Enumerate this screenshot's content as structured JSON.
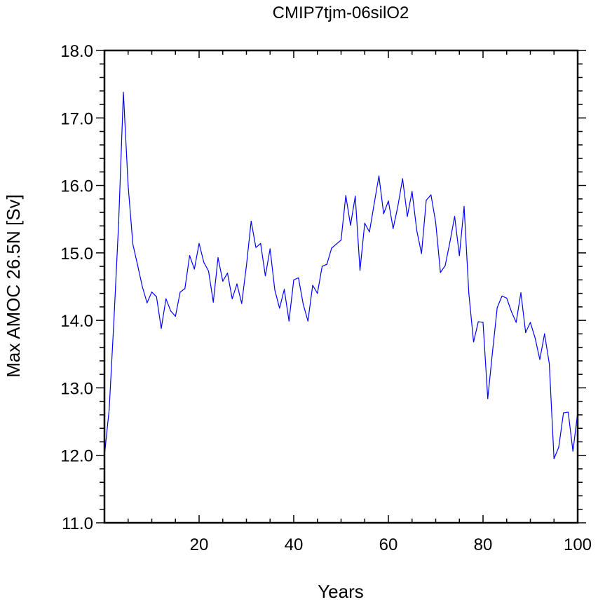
{
  "chart_data": {
    "type": "line",
    "title": "CMIP7tjm-06silO2",
    "xlabel": "Years",
    "ylabel": "Max AMOC 26.5N [Sv]",
    "xlim": [
      0,
      100
    ],
    "ylim": [
      11.0,
      18.0
    ],
    "xticks": [
      20,
      40,
      60,
      80,
      100
    ],
    "xtick_labels": [
      "20",
      "40",
      "60",
      "80",
      "100"
    ],
    "yticks": [
      11.0,
      12.0,
      13.0,
      14.0,
      15.0,
      16.0,
      17.0,
      18.0
    ],
    "ytick_labels": [
      "11.0",
      "12.0",
      "13.0",
      "14.0",
      "15.0",
      "16.0",
      "17.0",
      "18.0"
    ],
    "grid": false,
    "line_color": "#0000ff",
    "series": [
      {
        "x": [
          0,
          1,
          2,
          3,
          4,
          5,
          6,
          7,
          8,
          9,
          10,
          11,
          12,
          13,
          14,
          15,
          16,
          17,
          18,
          19,
          20,
          21,
          22,
          23,
          24,
          25,
          26,
          27,
          28,
          29,
          30,
          31,
          32,
          33,
          34,
          35,
          36,
          37,
          38,
          39,
          40,
          41,
          42,
          43,
          44,
          45,
          46,
          47,
          48,
          49,
          50,
          51,
          52,
          53,
          54,
          55,
          56,
          57,
          58,
          59,
          60,
          61,
          62,
          63,
          64,
          65,
          66,
          67,
          68,
          69,
          70,
          71,
          72,
          73,
          74,
          75,
          76,
          77,
          78,
          79,
          80,
          81,
          82,
          83,
          84,
          85,
          86,
          87,
          88,
          89,
          90,
          91,
          92,
          93,
          94,
          95,
          96,
          97,
          98,
          99,
          100
        ],
        "values": [
          12.0,
          12.68,
          14.0,
          15.45,
          17.38,
          16.0,
          15.13,
          14.82,
          14.5,
          14.26,
          14.42,
          14.35,
          13.88,
          14.32,
          14.14,
          14.06,
          14.42,
          14.47,
          14.96,
          14.76,
          15.14,
          14.86,
          14.73,
          14.27,
          14.93,
          14.58,
          14.7,
          14.32,
          14.54,
          14.25,
          14.81,
          15.47,
          15.08,
          15.14,
          14.66,
          15.06,
          14.45,
          14.18,
          14.46,
          13.99,
          14.6,
          14.63,
          14.24,
          13.99,
          14.52,
          14.4,
          14.8,
          14.83,
          15.07,
          15.13,
          15.19,
          15.85,
          15.41,
          15.84,
          14.74,
          15.44,
          15.31,
          15.73,
          16.14,
          15.58,
          15.77,
          15.36,
          15.69,
          16.1,
          15.54,
          15.91,
          15.33,
          14.99,
          15.78,
          15.86,
          15.45,
          14.71,
          14.81,
          15.16,
          15.54,
          14.96,
          15.69,
          14.4,
          13.68,
          13.98,
          13.97,
          12.84,
          13.53,
          14.19,
          14.36,
          14.33,
          14.13,
          13.97,
          14.41,
          13.82,
          13.97,
          13.74,
          13.42,
          13.8,
          13.36,
          11.95,
          12.12,
          12.63,
          12.64,
          12.06,
          12.63
        ]
      }
    ]
  }
}
